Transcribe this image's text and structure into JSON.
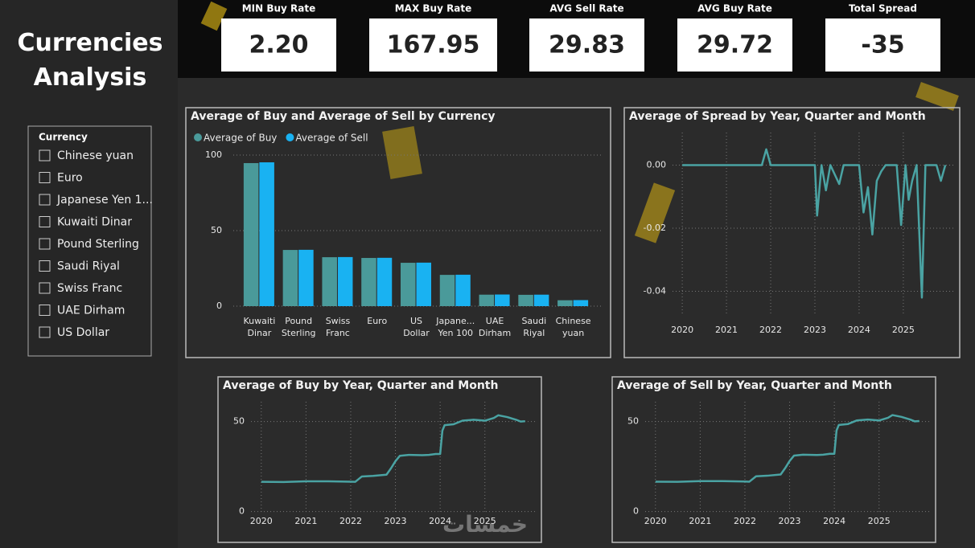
{
  "header": {
    "title": "Currencies Analysis"
  },
  "kpis": [
    {
      "label": "MIN Buy Rate",
      "value": "2.20"
    },
    {
      "label": "MAX Buy Rate",
      "value": "167.95"
    },
    {
      "label": "AVG Sell Rate",
      "value": "29.83"
    },
    {
      "label": "AVG Buy Rate",
      "value": "29.72"
    },
    {
      "label": "Total Spread",
      "value": "-35"
    }
  ],
  "slicer": {
    "title": "Currency",
    "items": [
      "Chinese yuan",
      "Euro",
      "Japanese Yen 1...",
      "Kuwaiti Dinar",
      "Pound Sterling",
      "Saudi Riyal",
      "Swiss Franc",
      "UAE Dirham",
      "US Dollar"
    ]
  },
  "watermark": "خمسات",
  "chart_data": [
    {
      "type": "bar",
      "title": "Average of Buy and Average of Sell by Currency",
      "categories": [
        "Kuwaiti Dinar",
        "Pound Sterling",
        "Swiss Franc",
        "Euro",
        "US Dollar",
        "Japane... Yen 100",
        "UAE Dirham",
        "Saudi Riyal",
        "Chinese yuan"
      ],
      "series": [
        {
          "name": "Average of Buy",
          "color": "#4a9a9a",
          "values": [
            94.7,
            37.2,
            32.4,
            31.9,
            28.7,
            20.7,
            7.6,
            7.5,
            3.9
          ]
        },
        {
          "name": "Average of Sell",
          "color": "#19b2f2",
          "values": [
            95.2,
            37.3,
            32.5,
            32.0,
            28.8,
            20.8,
            7.7,
            7.6,
            4.0
          ]
        }
      ],
      "ylim": [
        0,
        100
      ],
      "yticks": [
        0,
        50,
        100
      ],
      "grid": true,
      "legend": "top-left"
    },
    {
      "type": "line",
      "title": "Average of Spread by Year, Quarter and Month",
      "x": [
        2020.0,
        2020.5,
        2021.0,
        2021.5,
        2021.8,
        2021.9,
        2022.0,
        2022.5,
        2023.0,
        2023.05,
        2023.15,
        2023.25,
        2023.35,
        2023.45,
        2023.55,
        2023.65,
        2024.0,
        2024.1,
        2024.2,
        2024.3,
        2024.4,
        2024.5,
        2024.6,
        2024.85,
        2024.95,
        2025.05,
        2025.12,
        2025.2,
        2025.3,
        2025.42,
        2025.5,
        2025.75,
        2025.85,
        2025.95
      ],
      "values": [
        0,
        0,
        0,
        0,
        0,
        0.005,
        0,
        0,
        0,
        -0.016,
        0,
        -0.008,
        0,
        -0.003,
        -0.006,
        0,
        0,
        -0.015,
        -0.007,
        -0.022,
        -0.005,
        -0.002,
        0,
        0,
        -0.019,
        0,
        -0.011,
        -0.005,
        0,
        -0.042,
        0,
        0,
        -0.005,
        0
      ],
      "color": "#4aa3a3",
      "xlim": [
        2019.78,
        2026.13
      ],
      "xticks": [
        2020,
        2021,
        2022,
        2023,
        2024,
        2025
      ],
      "ylim": [
        -0.047,
        0.0103
      ],
      "yticks": [
        {
          "value": 0,
          "label": "0.00"
        },
        {
          "value": -0.02,
          "label": "-0.02"
        },
        {
          "value": -0.04,
          "label": "-0.04"
        }
      ],
      "grid": true
    },
    {
      "type": "line",
      "title": "Average of Buy by Year, Quarter and Month",
      "x": [
        2020.0,
        2020.5,
        2021.0,
        2021.5,
        2022.0,
        2022.1,
        2022.25,
        2022.5,
        2022.8,
        2022.9,
        2023.0,
        2023.1,
        2023.3,
        2023.6,
        2023.75,
        2023.9,
        2024.0,
        2024.05,
        2024.1,
        2024.3,
        2024.5,
        2024.75,
        2025.0,
        2025.2,
        2025.3,
        2025.5,
        2025.7,
        2025.8,
        2025.9
      ],
      "values": [
        16.5,
        16.4,
        16.8,
        16.8,
        16.6,
        16.5,
        19.5,
        19.8,
        20.5,
        24,
        28,
        31,
        31.5,
        31.3,
        31.5,
        32,
        32,
        45,
        48,
        48.5,
        50.5,
        51,
        50.5,
        52,
        53.5,
        52.5,
        51,
        50,
        50.2
      ],
      "color": "#4aa3a3",
      "xlim": [
        2019.77,
        2026.12
      ],
      "xticks": [
        2020,
        2021,
        2022,
        2023,
        2024,
        2025
      ],
      "ylim": [
        -1.5,
        61
      ],
      "yticks": [
        0,
        50
      ],
      "grid": true
    },
    {
      "type": "line",
      "title": "Average of Sell by Year, Quarter and Month",
      "x": [
        2020.0,
        2020.5,
        2021.0,
        2021.5,
        2022.0,
        2022.1,
        2022.25,
        2022.5,
        2022.8,
        2022.9,
        2023.0,
        2023.1,
        2023.3,
        2023.6,
        2023.75,
        2023.9,
        2024.0,
        2024.05,
        2024.1,
        2024.3,
        2024.5,
        2024.75,
        2025.0,
        2025.2,
        2025.3,
        2025.5,
        2025.7,
        2025.8,
        2025.9
      ],
      "values": [
        16.6,
        16.5,
        16.9,
        16.9,
        16.7,
        16.6,
        19.6,
        19.9,
        20.6,
        24.1,
        28.1,
        31.1,
        31.6,
        31.4,
        31.6,
        32.1,
        32.1,
        45.1,
        48.1,
        48.6,
        50.6,
        51.1,
        50.6,
        52.1,
        53.6,
        52.6,
        51.1,
        50.1,
        50.3
      ],
      "color": "#4aa3a3",
      "xlim": [
        2019.77,
        2026.12
      ],
      "xticks": [
        2020,
        2021,
        2022,
        2023,
        2024,
        2025
      ],
      "ylim": [
        -1.5,
        61
      ],
      "yticks": [
        0,
        50
      ],
      "grid": true
    }
  ]
}
